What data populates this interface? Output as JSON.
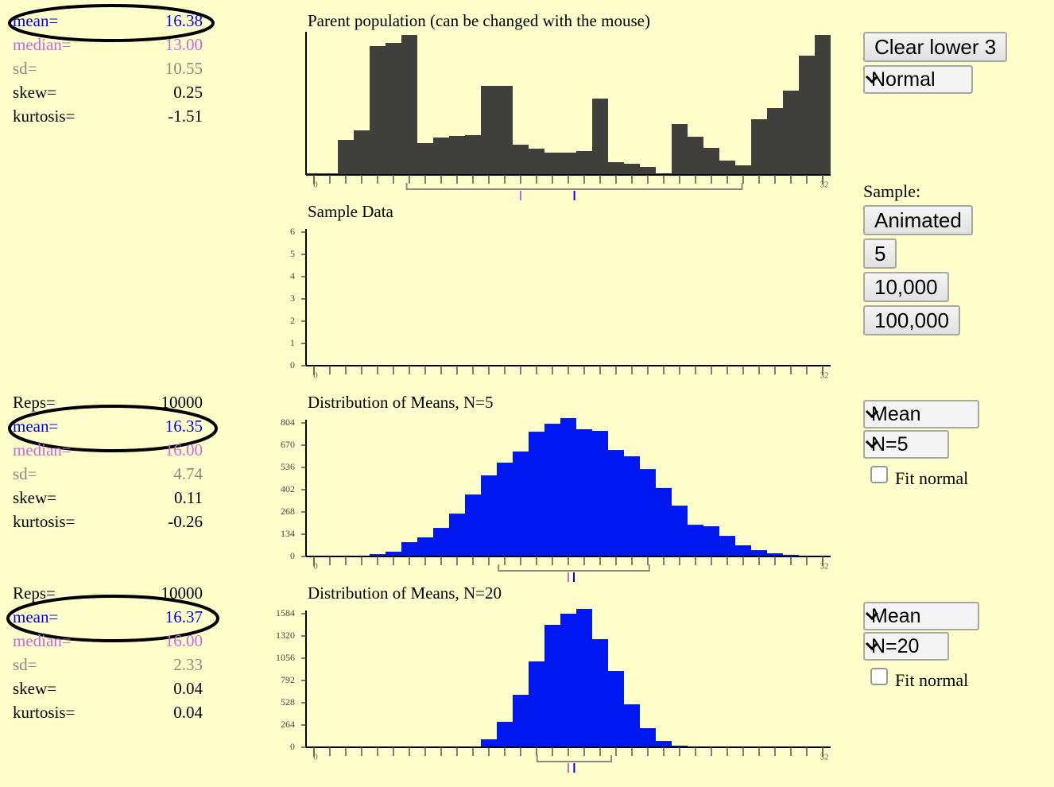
{
  "chart_data": [
    {
      "type": "bar",
      "title": "Parent population (can be changed with the mouse)",
      "color": "#3f3f3c",
      "x": [
        0,
        1,
        2,
        3,
        4,
        5,
        6,
        7,
        8,
        9,
        10,
        11,
        12,
        13,
        14,
        15,
        16,
        17,
        18,
        19,
        20,
        21,
        22,
        23,
        24,
        25,
        26,
        27,
        28,
        29,
        30,
        31,
        32
      ],
      "values": [
        2,
        2,
        44,
        56,
        162,
        166,
        176,
        40,
        47,
        49,
        50,
        112,
        112,
        38,
        33,
        28,
        28,
        30,
        96,
        16,
        14,
        10,
        2,
        64,
        48,
        34,
        18,
        12,
        70,
        84,
        106,
        150,
        176
      ],
      "xlim": [
        -0.5,
        32.5
      ],
      "xticks": [
        0,
        32
      ],
      "ylim": [
        0,
        176
      ],
      "stats": [
        {
          "name": "mean=",
          "value": 16.38,
          "color": "#0000ee"
        },
        {
          "name": "median=",
          "value": {
            "value": 13,
            "label": "13.00"
          },
          "color": "#cc66dd"
        },
        {
          "name": "sd=",
          "value": 10.55,
          "color": "#8a8a80"
        },
        {
          "name": "skew=",
          "value": 0.25,
          "color": "#000000"
        },
        {
          "name": "kurtosis=",
          "value": -1.51,
          "color": "#000000"
        }
      ]
    },
    {
      "type": "bar",
      "title": "Sample Data",
      "color": "#0018f0",
      "x": [],
      "values": [],
      "xlim": [
        -0.5,
        32.5
      ],
      "xticks": [
        0,
        32
      ],
      "ylim": [
        0,
        6
      ],
      "yticks": [
        0,
        1,
        2,
        3,
        4,
        5,
        6
      ]
    },
    {
      "type": "bar",
      "title": "Distribution of Means, N=5",
      "color": "#0018f0",
      "x": [
        0,
        1,
        2,
        3,
        4,
        5,
        6,
        7,
        8,
        9,
        10,
        11,
        12,
        13,
        14,
        15,
        16,
        17,
        18,
        19,
        20,
        21,
        22,
        23,
        24,
        25,
        26,
        27,
        28,
        29,
        30,
        31,
        32
      ],
      "values": [
        0,
        0,
        0,
        5,
        14,
        29,
        86,
        115,
        172,
        258,
        373,
        488,
        565,
        632,
        751,
        799,
        833,
        766,
        756,
        641,
        603,
        526,
        412,
        306,
        191,
        182,
        124,
        67,
        38,
        19,
        10,
        5,
        5
      ],
      "xlim": [
        -0.5,
        32.5
      ],
      "xticks": [
        0,
        32
      ],
      "ylim": [
        0,
        804
      ],
      "yticks": [
        0,
        134,
        268,
        402,
        536,
        670,
        804
      ],
      "reps": {
        "name": "Reps=",
        "value": 10000
      },
      "stats": [
        {
          "name": "mean=",
          "value": 16.35,
          "color": "#0000ee"
        },
        {
          "name": "median=",
          "value": {
            "value": 16,
            "label": "16.00"
          },
          "color": "#cc66dd"
        },
        {
          "name": "sd=",
          "value": 4.74,
          "color": "#8a8a80"
        },
        {
          "name": "skew=",
          "value": 0.11,
          "color": "#000000"
        },
        {
          "name": "kurtosis=",
          "value": -0.26,
          "color": "#000000"
        }
      ]
    },
    {
      "type": "bar",
      "title": "Distribution of Means, N=20",
      "color": "#0018f0",
      "x": [
        0,
        1,
        2,
        3,
        4,
        5,
        6,
        7,
        8,
        9,
        10,
        11,
        12,
        13,
        14,
        15,
        16,
        17,
        18,
        19,
        20,
        21,
        22,
        23,
        24,
        25,
        26,
        27,
        28,
        29,
        30,
        31,
        32
      ],
      "values": [
        0,
        0,
        0,
        0,
        0,
        0,
        0,
        0,
        0,
        0,
        9,
        94,
        302,
        622,
        1018,
        1452,
        1584,
        1641,
        1282,
        905,
        509,
        226,
        75,
        19,
        9,
        5,
        0,
        0,
        0,
        0,
        0,
        0,
        0
      ],
      "xlim": [
        -0.5,
        32.5
      ],
      "xticks": [
        0,
        32
      ],
      "ylim": [
        0,
        1584
      ],
      "yticks": [
        0,
        264,
        528,
        792,
        1056,
        1320,
        1584
      ],
      "reps": {
        "name": "Reps=",
        "value": 10000
      },
      "stats": [
        {
          "name": "mean=",
          "value": 16.37,
          "color": "#0000ee"
        },
        {
          "name": "median=",
          "value": {
            "value": 16,
            "label": "16.00"
          },
          "color": "#cc66dd"
        },
        {
          "name": "sd=",
          "value": 2.33,
          "color": "#8a8a80"
        },
        {
          "name": "skew=",
          "value": 0.04,
          "color": "#000000"
        },
        {
          "name": "kurtosis=",
          "value": 0.04,
          "color": "#000000"
        }
      ]
    }
  ],
  "controls": {
    "clear": "Clear lower 3",
    "shape": "Normal",
    "sample_label": "Sample:",
    "sample_buttons": [
      "Animated",
      "5",
      "10,000",
      "100,000"
    ],
    "panels": [
      {
        "statistic": "Mean",
        "n": "N=5",
        "fit": "Fit normal"
      },
      {
        "statistic": "Mean",
        "n": "N=20",
        "fit": "Fit normal"
      }
    ]
  }
}
